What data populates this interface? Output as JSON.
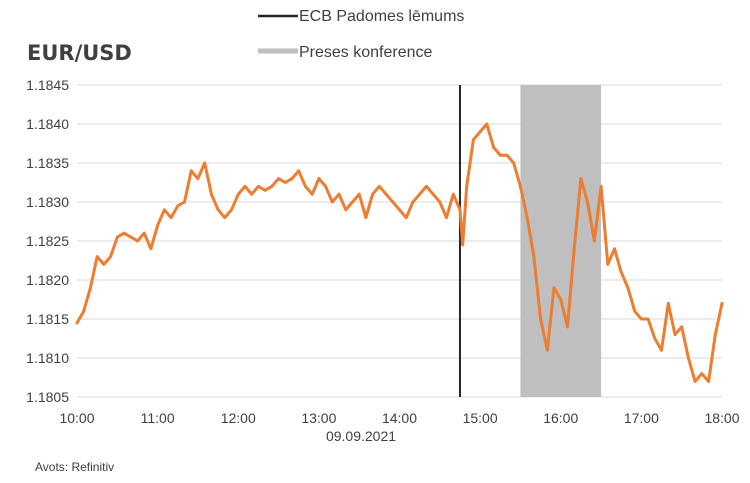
{
  "chart_data": {
    "type": "line",
    "title": "EUR/USD",
    "date_label": "09.09.2021",
    "source": "Avots: Refinitiv",
    "xlim": [
      "10:00",
      "18:00"
    ],
    "ylim": [
      1.1805,
      1.1845
    ],
    "x_ticks": [
      "10:00",
      "11:00",
      "12:00",
      "13:00",
      "14:00",
      "15:00",
      "16:00",
      "17:00",
      "18:00"
    ],
    "y_ticks": [
      "1.1845",
      "1.1840",
      "1.1835",
      "1.1830",
      "1.1825",
      "1.1820",
      "1.1815",
      "1.1810",
      "1.1805"
    ],
    "grid": true,
    "series_color": "#ED7D31",
    "legend": [
      {
        "label": "ECB Padomes lēmums",
        "color": "#262626",
        "kind": "line"
      },
      {
        "label": "Preses konference",
        "color": "#BFBFBF",
        "kind": "band"
      }
    ],
    "vline": {
      "x": "14:45",
      "color": "#262626"
    },
    "band": {
      "from": "15:30",
      "to": "16:30",
      "color": "#BFBFBF"
    },
    "series": [
      {
        "x": [
          "10:00",
          "10:05",
          "10:10",
          "10:15",
          "10:20",
          "10:25",
          "10:30",
          "10:35",
          "10:40",
          "10:45",
          "10:50",
          "10:55",
          "11:00",
          "11:05",
          "11:10",
          "11:15",
          "11:20",
          "11:25",
          "11:30",
          "11:35",
          "11:40",
          "11:45",
          "11:50",
          "11:55",
          "12:00",
          "12:05",
          "12:10",
          "12:15",
          "12:20",
          "12:25",
          "12:30",
          "12:35",
          "12:40",
          "12:45",
          "12:50",
          "12:55",
          "13:00",
          "13:05",
          "13:10",
          "13:15",
          "13:20",
          "13:25",
          "13:30",
          "13:35",
          "13:40",
          "13:45",
          "13:50",
          "13:55",
          "14:00",
          "14:05",
          "14:10",
          "14:15",
          "14:20",
          "14:25",
          "14:30",
          "14:35",
          "14:40",
          "14:45",
          "14:47",
          "14:50",
          "14:55",
          "15:00",
          "15:05",
          "15:10",
          "15:15",
          "15:20",
          "15:25",
          "15:30",
          "15:35",
          "15:40",
          "15:45",
          "15:50",
          "15:55",
          "16:00",
          "16:05",
          "16:10",
          "16:15",
          "16:20",
          "16:25",
          "16:30",
          "16:35",
          "16:40",
          "16:45",
          "16:50",
          "16:55",
          "17:00",
          "17:05",
          "17:10",
          "17:15",
          "17:20",
          "17:25",
          "17:30",
          "17:35",
          "17:40",
          "17:45",
          "17:50",
          "17:55",
          "18:00"
        ],
        "values": [
          1.18145,
          1.1816,
          1.1819,
          1.1823,
          1.1822,
          1.1823,
          1.18255,
          1.1826,
          1.18255,
          1.1825,
          1.1826,
          1.1824,
          1.1827,
          1.1829,
          1.1828,
          1.18295,
          1.183,
          1.1834,
          1.1833,
          1.1835,
          1.1831,
          1.1829,
          1.1828,
          1.1829,
          1.1831,
          1.1832,
          1.1831,
          1.1832,
          1.18315,
          1.1832,
          1.1833,
          1.18325,
          1.1833,
          1.1834,
          1.1832,
          1.1831,
          1.1833,
          1.1832,
          1.183,
          1.1831,
          1.1829,
          1.183,
          1.1831,
          1.1828,
          1.1831,
          1.1832,
          1.1831,
          1.183,
          1.1829,
          1.1828,
          1.183,
          1.1831,
          1.1832,
          1.1831,
          1.183,
          1.1828,
          1.1831,
          1.1829,
          1.18245,
          1.1832,
          1.1838,
          1.1839,
          1.184,
          1.1837,
          1.1836,
          1.1836,
          1.1835,
          1.1832,
          1.1828,
          1.1823,
          1.1815,
          1.1811,
          1.1819,
          1.18175,
          1.1814,
          1.1824,
          1.1833,
          1.183,
          1.1825,
          1.1832,
          1.1822,
          1.1824,
          1.1821,
          1.1819,
          1.1816,
          1.1815,
          1.1815,
          1.18125,
          1.1811,
          1.1817,
          1.1813,
          1.1814,
          1.181,
          1.1807,
          1.1808,
          1.1807,
          1.1813,
          1.1817
        ]
      }
    ]
  }
}
